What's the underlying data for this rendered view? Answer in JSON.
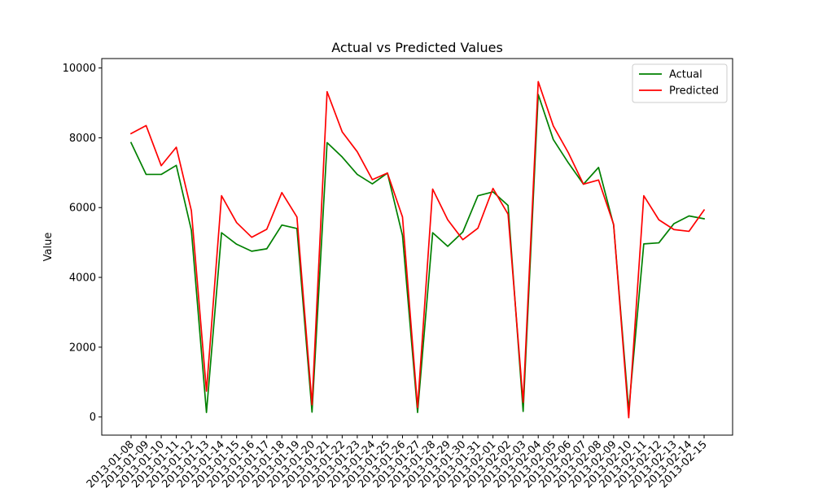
{
  "chart_data": {
    "type": "line",
    "title": "Actual vs Predicted Values",
    "xlabel": "",
    "ylabel": "Value",
    "ylim": [
      -520,
      10270
    ],
    "yticks": [
      0,
      2000,
      4000,
      6000,
      8000,
      10000
    ],
    "ytick_labels": [
      "0",
      "2000",
      "4000",
      "6000",
      "8000",
      "10000"
    ],
    "grid": false,
    "legend_position": "top-right",
    "x": [
      "2013-01-08",
      "2013-01-09",
      "2013-01-10",
      "2013-01-11",
      "2013-01-12",
      "2013-01-13",
      "2013-01-14",
      "2013-01-15",
      "2013-01-16",
      "2013-01-17",
      "2013-01-18",
      "2013-01-19",
      "2013-01-20",
      "2013-01-21",
      "2013-01-22",
      "2013-01-23",
      "2013-01-24",
      "2013-01-25",
      "2013-01-26",
      "2013-01-27",
      "2013-01-28",
      "2013-01-29",
      "2013-01-30",
      "2013-01-31",
      "2013-02-01",
      "2013-02-02",
      "2013-02-03",
      "2013-02-04",
      "2013-02-05",
      "2013-02-06",
      "2013-02-07",
      "2013-02-08",
      "2013-02-09",
      "2013-02-10",
      "2013-02-11",
      "2013-02-12",
      "2013-02-13",
      "2013-02-14",
      "2013-02-15"
    ],
    "series": [
      {
        "name": "Actual",
        "color": "#008000",
        "values": [
          7860,
          6950,
          6950,
          7210,
          5350,
          130,
          5280,
          4950,
          4750,
          4820,
          5500,
          5400,
          140,
          7860,
          7450,
          6950,
          6680,
          6990,
          5200,
          130,
          5280,
          4890,
          5300,
          6340,
          6450,
          6060,
          160,
          9240,
          7950,
          7280,
          6670,
          7150,
          5500,
          190,
          4960,
          4990,
          5540,
          5760,
          5680
        ]
      },
      {
        "name": "Predicted",
        "color": "#ff0000",
        "values": [
          8120,
          8350,
          7200,
          7730,
          5910,
          740,
          6340,
          5570,
          5150,
          5380,
          6430,
          5730,
          350,
          9320,
          8170,
          7600,
          6800,
          6990,
          5730,
          270,
          6530,
          5650,
          5080,
          5410,
          6550,
          5810,
          420,
          9610,
          8340,
          7570,
          6670,
          6790,
          5520,
          -20,
          6340,
          5650,
          5370,
          5320,
          5930
        ]
      }
    ]
  }
}
